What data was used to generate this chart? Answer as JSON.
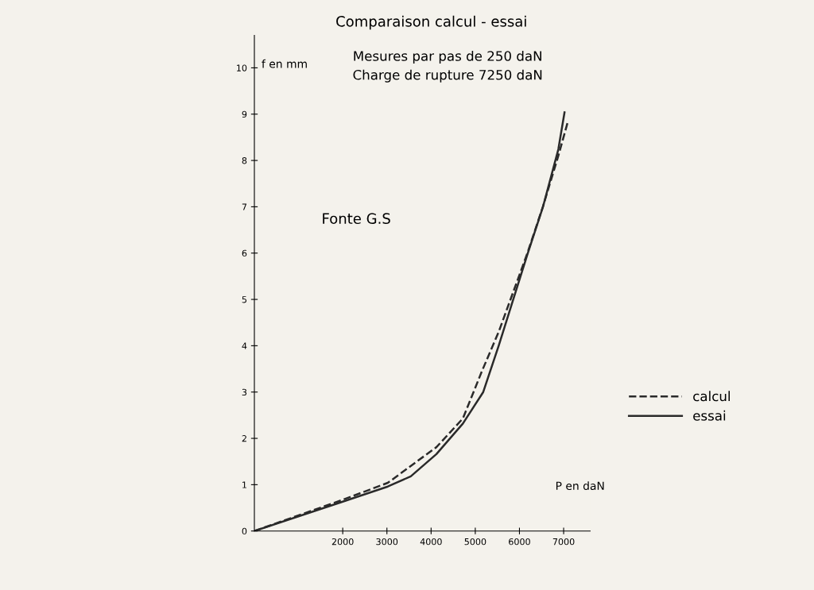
{
  "chart_data": {
    "type": "line",
    "title": "Comparaison calcul - essai",
    "subtitle": "Mesures par pas de 250 daN\nCharge de rupture 7250 daN",
    "xlabel": "P en daN",
    "ylabel": "f en mm",
    "annotations": [
      "Fonte G.S"
    ],
    "series": [
      {
        "name": "calcul",
        "color": "#2a2a2a",
        "line_style": "dashed",
        "x": [
          0,
          1960,
          3020,
          4120,
          4720,
          5150,
          5530,
          6180,
          6530,
          6880,
          7090
        ],
        "values": [
          0,
          0.66,
          1.04,
          1.81,
          2.43,
          3.45,
          4.3,
          6.0,
          7.0,
          8.1,
          8.82
        ]
      },
      {
        "name": "essai",
        "color": "#2a2a2a",
        "line_style": "solid",
        "x": [
          0,
          1960,
          3020,
          3540,
          4120,
          4720,
          5180,
          5530,
          6180,
          6530,
          6880,
          7020
        ],
        "values": [
          0,
          0.62,
          0.96,
          1.18,
          1.66,
          2.32,
          3.0,
          4.0,
          5.97,
          6.99,
          8.24,
          9.04
        ]
      }
    ],
    "xlim": [
      0,
      7600
    ],
    "ylim": [
      0,
      10.7
    ],
    "xticks": [
      2000,
      3000,
      4000,
      5000,
      6000,
      7000
    ],
    "yticks": [
      0,
      1,
      2,
      3,
      4,
      5,
      6,
      7,
      8,
      9,
      10
    ],
    "grid": false,
    "legend": "right",
    "marker": "none"
  }
}
